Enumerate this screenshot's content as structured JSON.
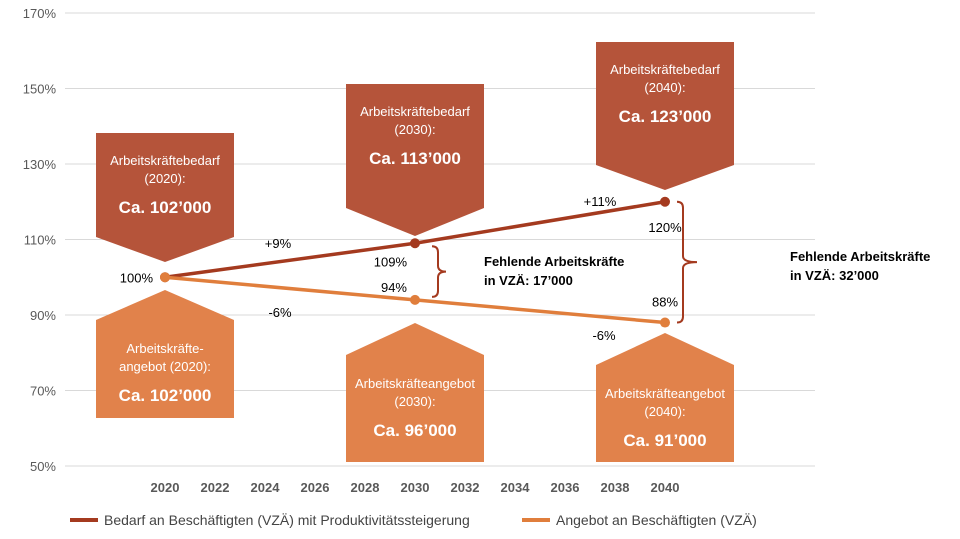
{
  "colors": {
    "demand": "#A43A1F",
    "supply": "#E07E3C",
    "demand_box": "#B5543A",
    "supply_box": "#E1824B",
    "grid": "#D9D9D9",
    "axis_text": "#595959"
  },
  "chart_data": {
    "type": "line",
    "xlabel": "",
    "ylabel": "",
    "x_ticks": [
      "2020",
      "2022",
      "2024",
      "2026",
      "2028",
      "2030",
      "2032",
      "2034",
      "2036",
      "2038",
      "2040"
    ],
    "y_ticks": [
      "50%",
      "70%",
      "90%",
      "110%",
      "130%",
      "150%",
      "170%"
    ],
    "xlim": [
      2016,
      2046
    ],
    "ylim": [
      50,
      170
    ],
    "grid": "horizontal",
    "legend_position": "bottom",
    "series": [
      {
        "name": "Bedarf an Beschäftigten (VZÄ) mit Produktivitätssteigerung",
        "key": "demand",
        "x": [
          2020,
          2030,
          2040
        ],
        "y": [
          100,
          109,
          120
        ],
        "point_labels": [
          "100%",
          "109%",
          "120%"
        ],
        "growth_labels": [
          "+9%",
          "+11%"
        ]
      },
      {
        "name": "Angebot an Beschäftigten (VZÄ)",
        "key": "supply",
        "x": [
          2020,
          2030,
          2040
        ],
        "y": [
          100,
          94,
          88
        ],
        "point_labels": [
          "",
          "94%",
          "88%"
        ],
        "growth_labels": [
          "-6%",
          "-6%"
        ]
      }
    ],
    "gap_annotations": [
      {
        "x": 2030,
        "line1": "Fehlende Arbeitskräfte",
        "line2": "in VZÄ: 17’000"
      },
      {
        "x": 2040,
        "line1": "Fehlende Arbeitskräfte",
        "line2": "in VZÄ: 32’000"
      }
    ],
    "callouts": {
      "demand": [
        {
          "x": 2020,
          "label1": "Arbeitskräftebedarf",
          "label2": "(2020):",
          "value": "Ca. 102’000"
        },
        {
          "x": 2030,
          "label1": "Arbeitskräftebedarf",
          "label2": "(2030):",
          "value": "Ca. 113’000"
        },
        {
          "x": 2040,
          "label1": "Arbeitskräftebedarf",
          "label2": "(2040):",
          "value": "Ca. 123’000"
        }
      ],
      "supply": [
        {
          "x": 2020,
          "label1": "Arbeitskräfte-",
          "label2": "angebot (2020):",
          "value": "Ca. 102’000"
        },
        {
          "x": 2030,
          "label1": "Arbeitskräfteangebot",
          "label2": "(2030):",
          "value": "Ca. 96’000"
        },
        {
          "x": 2040,
          "label1": "Arbeitskräfteangebot",
          "label2": "(2040):",
          "value": "Ca. 91’000"
        }
      ]
    }
  },
  "legend": {
    "demand_label": "Bedarf an Beschäftigten (VZÄ) mit Produktivitätssteigerung",
    "supply_label": "Angebot an Beschäftigten (VZÄ)"
  }
}
